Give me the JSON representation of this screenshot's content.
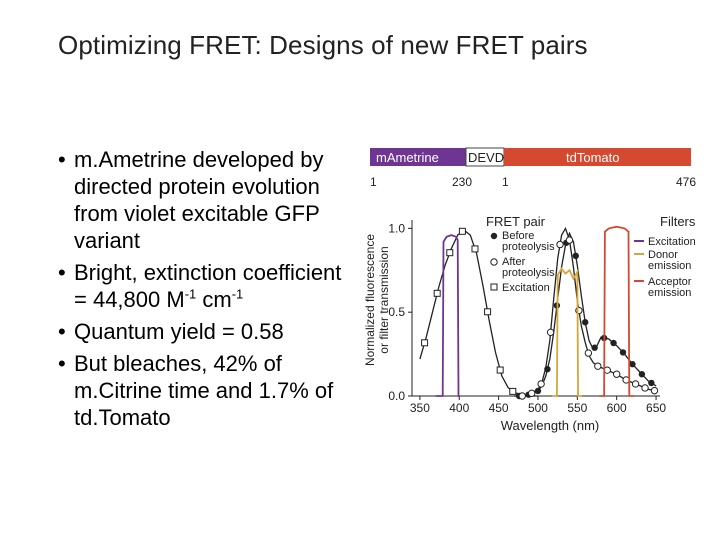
{
  "slide": {
    "title": "Optimizing FRET: Designs of new FRET pairs"
  },
  "bullets": [
    {
      "text": "m.Ametrine developed by directed protein evolution from violet excitable GFP variant"
    },
    {
      "text_a": "Bright, extinction coefficient = 44,800 M",
      "sup_a": "-1",
      "text_b": " cm",
      "sup_b": "-1"
    },
    {
      "text": "Quantum yield = 0.58"
    },
    {
      "text": "But bleaches, 42% of m.Citrine time and 1.7% of td.Tomato"
    }
  ],
  "construct": {
    "segments": [
      {
        "label": "mAmetrine",
        "color": "#6f3592",
        "start_label": "1",
        "end_label": "230"
      },
      {
        "label": "DEVD",
        "color": "#ffffff"
      },
      {
        "label": "tdTomato",
        "color": "#d4492f",
        "start_label": "1",
        "end_label": "476"
      }
    ]
  },
  "legend": {
    "fret_title": "FRET pair",
    "before": "Before\nproteolysis",
    "after": "After\nproteolysis",
    "excitation": "Excitation",
    "filters_title": "Filters",
    "filter_excitation": "Excitation",
    "filter_donor": "Donor\nemission",
    "filter_acceptor": "Acceptor\nemission",
    "colors": {
      "excitation": "#6f3592",
      "donor": "#d6a63a",
      "acceptor": "#d4492f"
    }
  },
  "chart_data": {
    "type": "line",
    "xlabel": "Wavelength (nm)",
    "ylabel": "Normalized fluorescence\nor filter transmission",
    "xlim": [
      340,
      655
    ],
    "ylim": [
      0,
      1.05
    ],
    "x_ticks": [
      350,
      400,
      450,
      500,
      550,
      600,
      650
    ],
    "y_ticks": [
      0.0,
      0.5,
      1.0
    ],
    "y_tick_labels": [
      "0.0",
      "0.5",
      "1.0"
    ],
    "series": [
      {
        "name": "Excitation",
        "marker": "open-square",
        "color": "#222222",
        "x": [
          350,
          358,
          366,
          374,
          382,
          390,
          398,
          406,
          414,
          422,
          430,
          438,
          446,
          454,
          462,
          470,
          478,
          486,
          494,
          500
        ],
        "y": [
          0.22,
          0.35,
          0.5,
          0.65,
          0.78,
          0.88,
          0.96,
          0.99,
          0.96,
          0.85,
          0.66,
          0.45,
          0.26,
          0.12,
          0.05,
          0.02,
          0.01,
          0.0,
          0.0,
          0.0
        ],
        "markers_x": [
          356,
          372,
          388,
          404,
          420,
          436,
          452,
          468
        ]
      },
      {
        "name": "Before proteolysis",
        "marker": "filled-circle",
        "color": "#222222",
        "x": [
          470,
          480,
          490,
          500,
          505,
          510,
          515,
          520,
          525,
          530,
          535,
          540,
          545,
          550,
          555,
          560,
          565,
          570,
          575,
          580,
          590,
          600,
          610,
          620,
          630,
          640,
          650
        ],
        "y": [
          0.0,
          0.0,
          0.01,
          0.03,
          0.06,
          0.12,
          0.22,
          0.38,
          0.58,
          0.77,
          0.9,
          0.97,
          0.92,
          0.78,
          0.6,
          0.44,
          0.33,
          0.28,
          0.3,
          0.35,
          0.34,
          0.3,
          0.25,
          0.19,
          0.14,
          0.09,
          0.06
        ],
        "markers_x": [
          476,
          488,
          500,
          512,
          524,
          536,
          548,
          560,
          572,
          584,
          596,
          608,
          620,
          632,
          644
        ]
      },
      {
        "name": "After proteolysis",
        "marker": "open-circle",
        "color": "#222222",
        "x": [
          470,
          480,
          490,
          500,
          505,
          510,
          515,
          520,
          525,
          530,
          535,
          540,
          545,
          550,
          555,
          560,
          565,
          570,
          575,
          580,
          590,
          600,
          610,
          620,
          630,
          640,
          650
        ],
        "y": [
          0.0,
          0.0,
          0.01,
          0.04,
          0.08,
          0.17,
          0.33,
          0.58,
          0.82,
          0.96,
          1.0,
          0.93,
          0.77,
          0.57,
          0.42,
          0.32,
          0.24,
          0.2,
          0.18,
          0.17,
          0.15,
          0.13,
          0.1,
          0.08,
          0.06,
          0.04,
          0.03
        ],
        "markers_x": [
          480,
          492,
          504,
          516,
          528,
          540,
          552,
          564,
          576,
          588,
          600,
          612,
          624,
          636,
          648
        ]
      },
      {
        "name": "Filter Excitation",
        "color": "#6f3592",
        "x": [
          370,
          379,
          380,
          384,
          390,
          396,
          398,
          399,
          400
        ],
        "y": [
          0.0,
          0.0,
          0.92,
          0.95,
          0.96,
          0.95,
          0.93,
          0.0,
          0.0
        ]
      },
      {
        "name": "Filter Donor emission",
        "color": "#d6a63a",
        "x": [
          518,
          524,
          525,
          530,
          535,
          540,
          545,
          550,
          551,
          556
        ],
        "y": [
          0.0,
          0.0,
          0.72,
          0.76,
          0.73,
          0.75,
          0.7,
          0.74,
          0.0,
          0.0
        ]
      },
      {
        "name": "Filter Acceptor emission",
        "color": "#d4492f",
        "x": [
          578,
          584,
          585,
          590,
          600,
          610,
          615,
          616,
          622
        ],
        "y": [
          0.0,
          0.0,
          0.98,
          1.0,
          1.01,
          1.0,
          0.98,
          0.0,
          0.0
        ]
      }
    ]
  }
}
